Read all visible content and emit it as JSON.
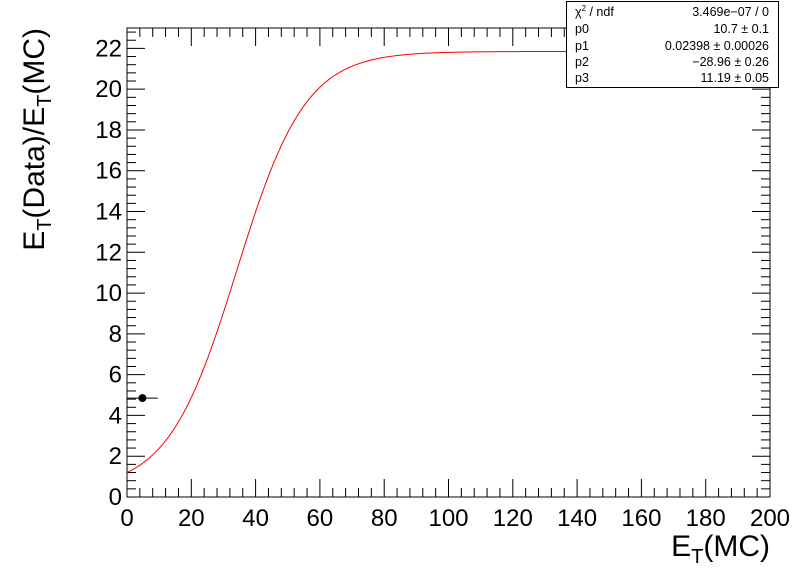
{
  "chart_data": {
    "type": "scatter",
    "xlabel": {
      "main": "E",
      "sub": "T",
      "rest": "(MC)"
    },
    "ylabel": {
      "part1": "E",
      "sub1": "T",
      "mid": "(Data)/E",
      "sub2": "T",
      "rest": "(MC)"
    },
    "xlim": [
      0,
      200
    ],
    "ylim": [
      0,
      23
    ],
    "x_ticks": [
      0,
      20,
      40,
      60,
      80,
      100,
      120,
      140,
      160,
      180,
      200
    ],
    "y_ticks": [
      0,
      2,
      4,
      6,
      8,
      10,
      12,
      14,
      16,
      18,
      20,
      22
    ],
    "points": [
      {
        "x": 4.8,
        "y": 4.85,
        "xerr": 4.8
      }
    ],
    "fit": {
      "color": "#ff0000",
      "x_range": [
        0,
        140
      ],
      "params": {
        "p0": 10.7,
        "p1": 0.02398,
        "p2": -28.96,
        "p3": 11.19
      }
    },
    "stats": {
      "chi2_symbol": "χ",
      "chi2_sup": "2",
      "chi2_rest": " / ndf",
      "chi2_value": "3.469e−07 / 0",
      "rows": [
        {
          "name": "p0",
          "value": "10.7 ± 0.1"
        },
        {
          "name": "p1",
          "value": "0.02398 ± 0.00026"
        },
        {
          "name": "p2",
          "value": "−28.96 ± 0.26"
        },
        {
          "name": "p3",
          "value": "11.19 ± 0.05"
        }
      ]
    }
  }
}
